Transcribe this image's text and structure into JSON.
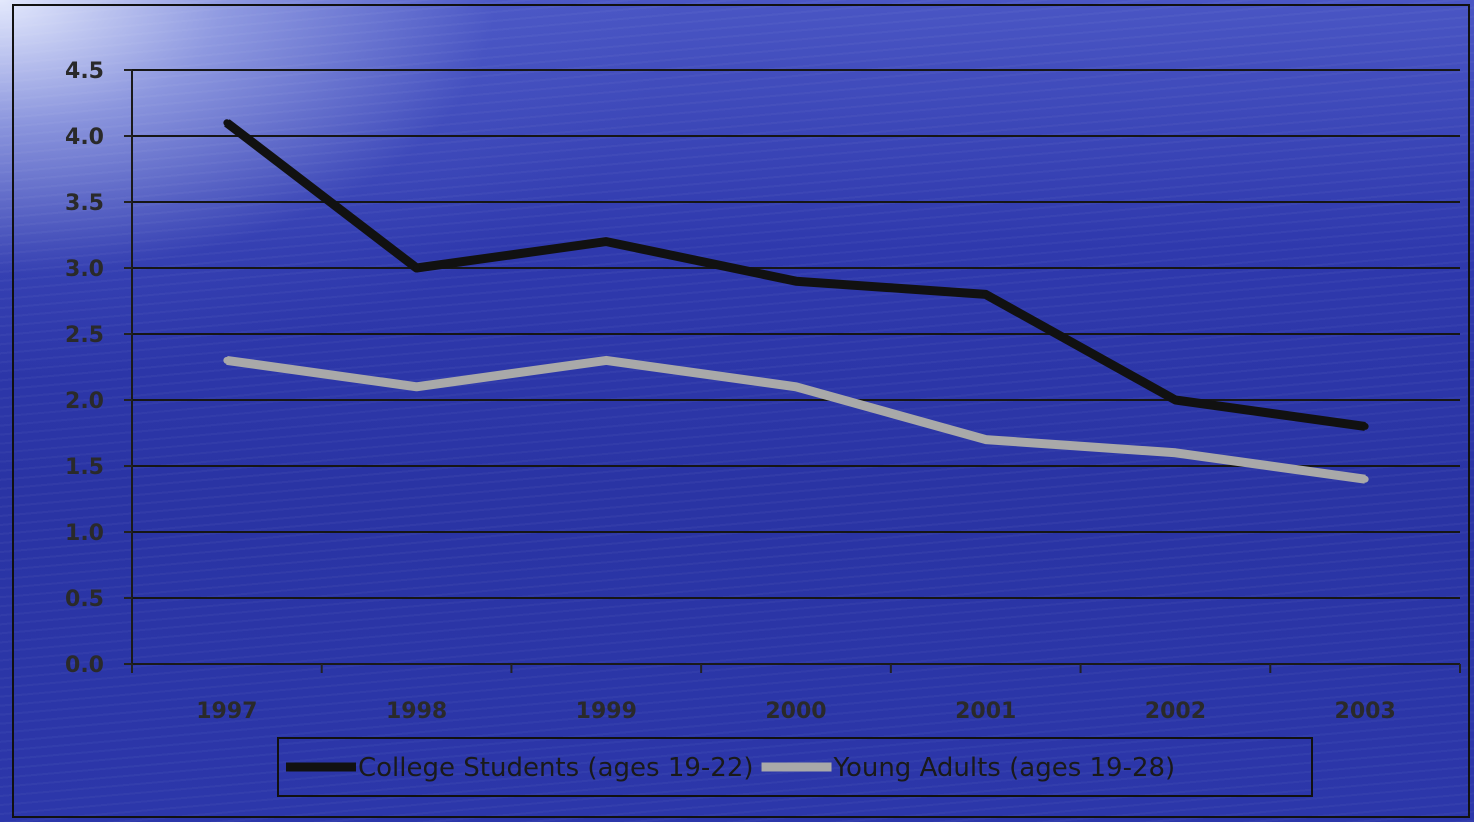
{
  "chart_data": {
    "type": "line",
    "categories": [
      "1997",
      "1998",
      "1999",
      "2000",
      "2001",
      "2002",
      "2003"
    ],
    "series": [
      {
        "name": "College Students (ages 19-22)",
        "values": [
          4.1,
          3.0,
          3.2,
          2.9,
          2.8,
          2.0,
          1.8
        ],
        "color": "#111111"
      },
      {
        "name": "Young Adults (ages 19-28)",
        "values": [
          2.3,
          2.1,
          2.3,
          2.1,
          1.7,
          1.6,
          1.4
        ],
        "color": "#a9a9a9"
      }
    ],
    "y_ticks": [
      "0.0",
      "0.5",
      "1.0",
      "1.5",
      "2.0",
      "2.5",
      "3.0",
      "3.5",
      "4.0",
      "4.5"
    ],
    "ylim": [
      0,
      4.5
    ],
    "grid": true,
    "legend_position": "bottom"
  }
}
